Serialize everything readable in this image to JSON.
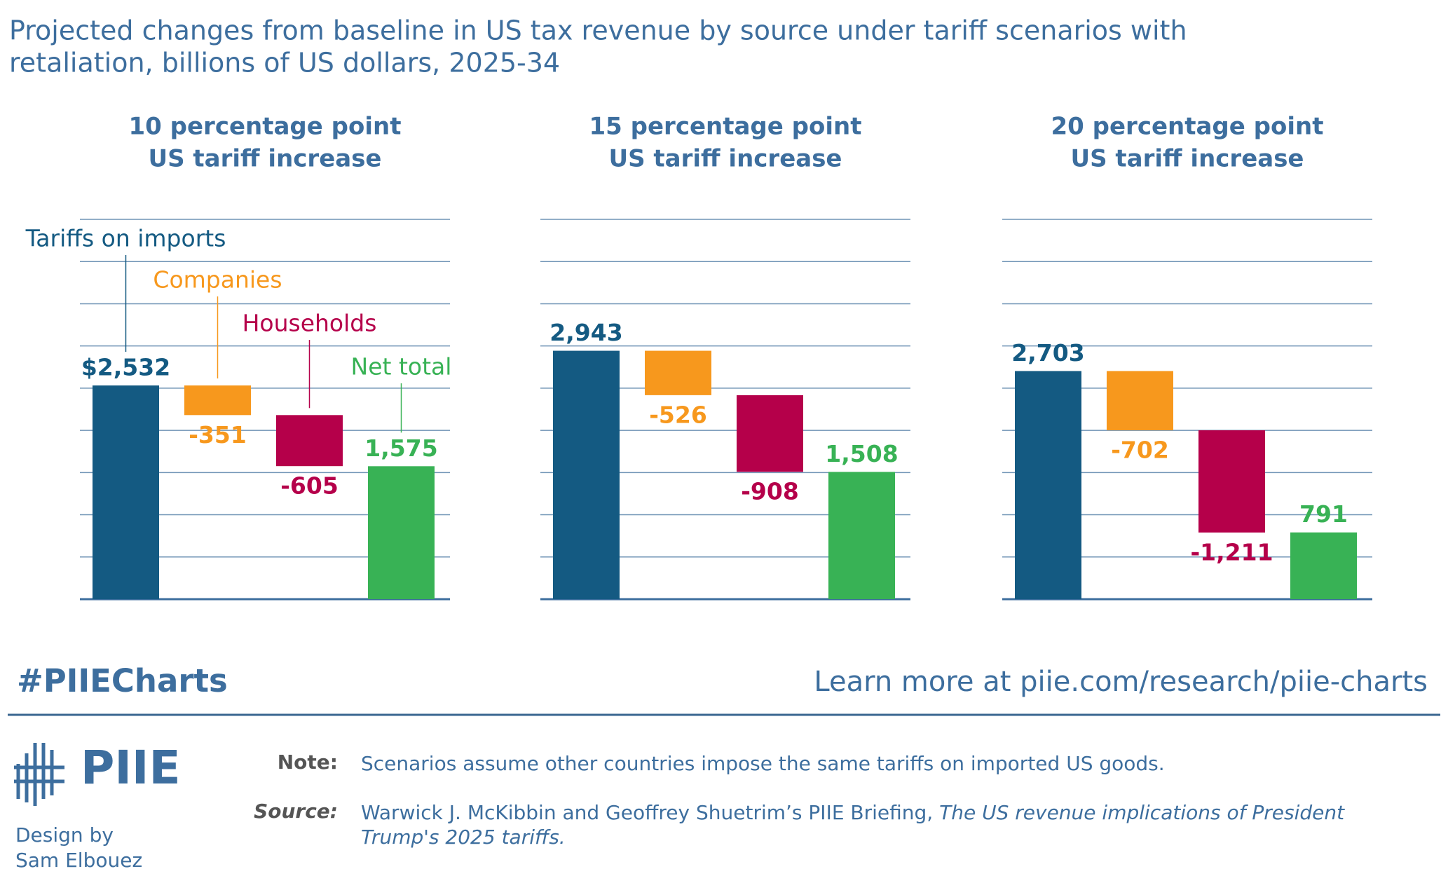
{
  "header": {
    "title_lines": [
      "Projected changes from baseline in US tax revenue by source under tariff scenarios with",
      "retaliation, billions of US dollars, 2025-34"
    ]
  },
  "chart_data": [
    {
      "type": "waterfall",
      "title_lines": [
        "10 percentage point",
        "US tariff increase"
      ],
      "categories": [
        "Tariffs on imports",
        "Companies",
        "Households",
        "Net total"
      ],
      "values": [
        2532,
        -351,
        -605,
        1575
      ],
      "value_labels": [
        "$2,532",
        "-351",
        "-605",
        "1,575"
      ],
      "measure": [
        "absolute",
        "relative",
        "relative",
        "total"
      ],
      "colors": [
        "#145a82",
        "#f7981d",
        "#b5004a",
        "#38b255"
      ],
      "ylim": [
        0,
        4500
      ],
      "yticks": [
        0,
        500,
        1000,
        1500,
        2000,
        2500,
        3000,
        3500,
        4000,
        4500
      ],
      "grid": true
    },
    {
      "type": "waterfall",
      "title_lines": [
        "15 percentage point",
        "US tariff increase"
      ],
      "categories": [
        null,
        null,
        null,
        null
      ],
      "values": [
        2943,
        -526,
        -908,
        1508
      ],
      "value_labels": [
        "2,943",
        "-526",
        "-908",
        "1,508"
      ],
      "measure": [
        "absolute",
        "relative",
        "relative",
        "total"
      ],
      "colors": [
        "#145a82",
        "#f7981d",
        "#b5004a",
        "#38b255"
      ],
      "ylim": [
        0,
        4500
      ],
      "yticks": [
        0,
        500,
        1000,
        1500,
        2000,
        2500,
        3000,
        3500,
        4000,
        4500
      ],
      "grid": true
    },
    {
      "type": "waterfall",
      "title_lines": [
        "20 percentage point",
        "US tariff increase"
      ],
      "categories": [
        null,
        null,
        null,
        null
      ],
      "values": [
        2703,
        -702,
        -1211,
        791
      ],
      "value_labels": [
        "2,703",
        "-702",
        "-1,211",
        "791"
      ],
      "measure": [
        "absolute",
        "relative",
        "relative",
        "total"
      ],
      "colors": [
        "#145a82",
        "#f7981d",
        "#b5004a",
        "#38b255"
      ],
      "ylim": [
        0,
        4500
      ],
      "yticks": [
        0,
        500,
        1000,
        1500,
        2000,
        2500,
        3000,
        3500,
        4000,
        4500
      ],
      "grid": true
    }
  ],
  "footer": {
    "hashtag": "#PIIECharts",
    "link": "Learn more at piie.com/research/piie-charts",
    "logo": "PIIE",
    "design_lines": [
      "Design by",
      "Sam Elbouez"
    ],
    "note_label": "Note:",
    "note": "Scenarios assume other countries impose the same tariffs on imported US goods.",
    "source_label": "Source:",
    "source_text": "Warwick J. McKibbin and Geoffrey Shuetrim’s PIIE Briefing,",
    "source_title_lines": [
      "The US revenue implications of President",
      "Trump's 2025 tariffs."
    ]
  }
}
